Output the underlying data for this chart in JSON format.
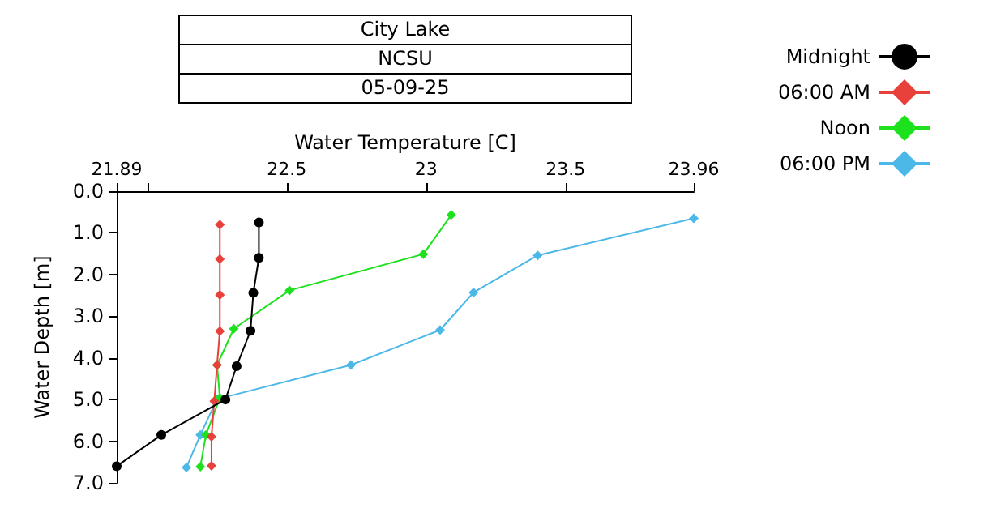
{
  "chart_data": {
    "type": "line",
    "title": "City Lake",
    "subtitle": "NCSU",
    "annotations": [
      "05-09-25"
    ],
    "xlabel": "Water Temperature [C]",
    "ylabel": "Water Depth [m]",
    "xlim": [
      21.89,
      23.96
    ],
    "xticks": [
      21.89,
      {
        "value": 22,
        "label": null
      },
      22.5,
      23,
      23.5,
      23.96
    ],
    "ylim": [
      7,
      0
    ],
    "yticks": [
      {
        "value": 0,
        "label": "0.0"
      },
      {
        "value": 1,
        "label": "1.0"
      },
      {
        "value": 2,
        "label": "2.0"
      },
      {
        "value": 3,
        "label": "3.0"
      },
      {
        "value": 4,
        "label": "4.0"
      },
      {
        "value": 5,
        "label": "5.0"
      },
      {
        "value": 6,
        "label": "6.0"
      },
      {
        "value": 7,
        "label": "7.0"
      }
    ],
    "grid": false,
    "legend": "top right",
    "line_style": "solid",
    "series": [
      {
        "name": "Midnight",
        "color": "#000000",
        "marker": "circle",
        "x": [
          22.4,
          22.4,
          22.38,
          22.37,
          22.32,
          22.28,
          22.05,
          21.89
        ],
        "values": [
          0.75,
          1.6,
          2.44,
          3.35,
          4.2,
          5.0,
          5.85,
          6.6
        ]
      },
      {
        "name": "06:00 AM",
        "color": "#e8403a",
        "marker": "diamond",
        "x": [
          22.26,
          22.26,
          22.26,
          22.26,
          22.25,
          22.24,
          22.23,
          22.23
        ],
        "values": [
          0.8,
          1.63,
          2.49,
          3.36,
          4.17,
          5.04,
          5.89,
          6.59
        ]
      },
      {
        "name": "Noon",
        "color": "#1ee11e",
        "marker": "diamond",
        "x": [
          23.09,
          22.99,
          22.51,
          22.31,
          22.25,
          22.26,
          22.21,
          22.19
        ],
        "values": [
          0.57,
          1.51,
          2.38,
          3.3,
          4.17,
          4.96,
          5.85,
          6.61
        ]
      },
      {
        "name": "06:00 PM",
        "color": "#4cb8e8",
        "marker": "diamond",
        "x": [
          23.96,
          23.4,
          23.17,
          23.05,
          22.73,
          22.25,
          22.19,
          22.14
        ],
        "values": [
          0.65,
          1.54,
          2.43,
          3.33,
          4.17,
          4.99,
          5.85,
          6.63
        ]
      }
    ]
  }
}
